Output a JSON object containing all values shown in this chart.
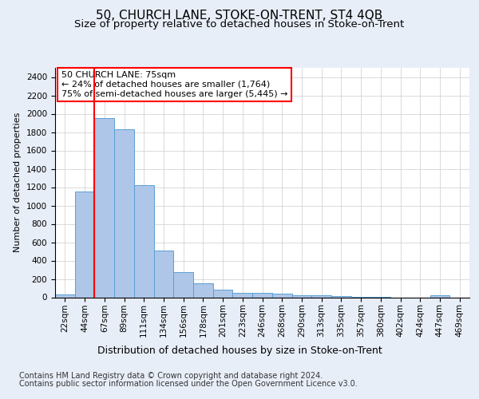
{
  "title": "50, CHURCH LANE, STOKE-ON-TRENT, ST4 4QB",
  "subtitle": "Size of property relative to detached houses in Stoke-on-Trent",
  "xlabel": "Distribution of detached houses by size in Stoke-on-Trent",
  "ylabel": "Number of detached properties",
  "footer_line1": "Contains HM Land Registry data © Crown copyright and database right 2024.",
  "footer_line2": "Contains public sector information licensed under the Open Government Licence v3.0.",
  "annotation_line1": "50 CHURCH LANE: 75sqm",
  "annotation_line2": "← 24% of detached houses are smaller (1,764)",
  "annotation_line3": "75% of semi-detached houses are larger (5,445) →",
  "categories": [
    "22sqm",
    "44sqm",
    "67sqm",
    "89sqm",
    "111sqm",
    "134sqm",
    "156sqm",
    "178sqm",
    "201sqm",
    "223sqm",
    "246sqm",
    "268sqm",
    "290sqm",
    "313sqm",
    "335sqm",
    "357sqm",
    "380sqm",
    "402sqm",
    "424sqm",
    "447sqm",
    "469sqm"
  ],
  "values": [
    30,
    1150,
    1950,
    1830,
    1220,
    510,
    270,
    150,
    80,
    50,
    45,
    40,
    25,
    20,
    15,
    5,
    5,
    0,
    0,
    20,
    0
  ],
  "bar_color": "#aec6e8",
  "bar_edge_color": "#5a9fd4",
  "red_line_x": 2.0,
  "ylim": [
    0,
    2500
  ],
  "yticks": [
    0,
    200,
    400,
    600,
    800,
    1000,
    1200,
    1400,
    1600,
    1800,
    2000,
    2200,
    2400
  ],
  "bg_color": "#e8eef8",
  "plot_bg_color": "#ffffff",
  "grid_color": "#cccccc",
  "title_fontsize": 11,
  "subtitle_fontsize": 9.5,
  "xlabel_fontsize": 9,
  "ylabel_fontsize": 8,
  "tick_fontsize": 7.5,
  "annotation_fontsize": 8,
  "footer_fontsize": 7
}
